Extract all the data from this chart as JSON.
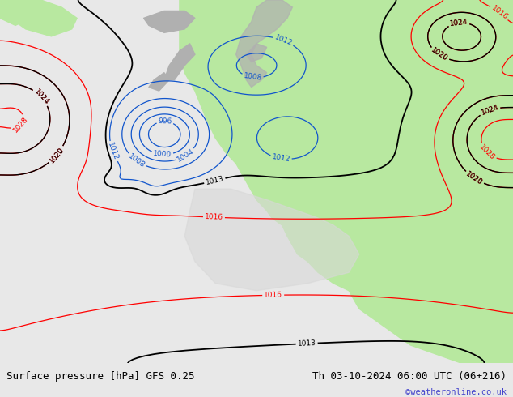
{
  "title_left": "Surface pressure [hPa] GFS 0.25",
  "title_right": "Th 03-10-2024 06:00 UTC (06+216)",
  "watermark": "©weatheronline.co.uk",
  "bg_color": "#e8e8e8",
  "sea_color": "#e8e8e8",
  "land_green": "#b8e8a0",
  "land_gray": "#b0b0b0",
  "title_fontsize": 9,
  "watermark_color": "#4444cc",
  "figsize": [
    6.34,
    4.9
  ],
  "dpi": 100
}
